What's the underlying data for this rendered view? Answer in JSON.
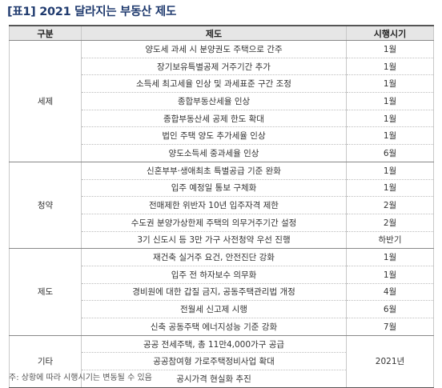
{
  "title": "[표1] 2021 달라지는 부동산 제도",
  "headers": [
    "구분",
    "제도",
    "시행시기"
  ],
  "groups": [
    {
      "category": "세제",
      "rows": [
        {
          "item": "양도세 과세 시 분양권도 주택으로 간주",
          "date": "1월"
        },
        {
          "item": "장기보유특별공제 거주기간 추가",
          "date": "1월"
        },
        {
          "item": "소득세 최고세율 인상 및 과세표준 구간 조정",
          "date": "1월"
        },
        {
          "item": "종합부동산세율 인상",
          "date": "1월"
        },
        {
          "item": "종합부동산세 공제 한도 확대",
          "date": "1월"
        },
        {
          "item": "법인 주택 양도 추가세율 인상",
          "date": "1월"
        },
        {
          "item": "양도소득세 중과세율 인상",
          "date": "6월"
        }
      ]
    },
    {
      "category": "청약",
      "rows": [
        {
          "item": "신혼부부·생애최초 특별공급 기준 완화",
          "date": "1월"
        },
        {
          "item": "입주 예정일 통보 구체화",
          "date": "1월"
        },
        {
          "item": "전매제한 위반자 10년 입주자격 제한",
          "date": "2월"
        },
        {
          "item": "수도권 분양가상한제 주택의 의무거주기간 설정",
          "date": "2월"
        },
        {
          "item": "3기 신도시 등 3만 가구 사전청약 우선 진행",
          "date": "하반기"
        }
      ]
    },
    {
      "category": "제도",
      "rows": [
        {
          "item": "재건축 실거주 요건, 안전진단 강화",
          "date": "1월"
        },
        {
          "item": "입주 전 하자보수 의무화",
          "date": "1월"
        },
        {
          "item": "경비원에 대한 갑질 금지, 공동주택관리법 개정",
          "date": "4월"
        },
        {
          "item": "전월세 신고제 시행",
          "date": "6월"
        },
        {
          "item": "신축 공동주택 에너지성능 기준 강화",
          "date": "7월"
        }
      ]
    },
    {
      "category": "기타",
      "date": "2021년",
      "rows": [
        {
          "item": "공공 전세주택, 총 11만4,000가구 공급"
        },
        {
          "item": "공공참여형 가로주택정비사업 확대"
        },
        {
          "item": "공시가격 현실화 추진"
        }
      ]
    }
  ],
  "note": "주: 상황에 따라 시행시기는 변동될 수 있음"
}
